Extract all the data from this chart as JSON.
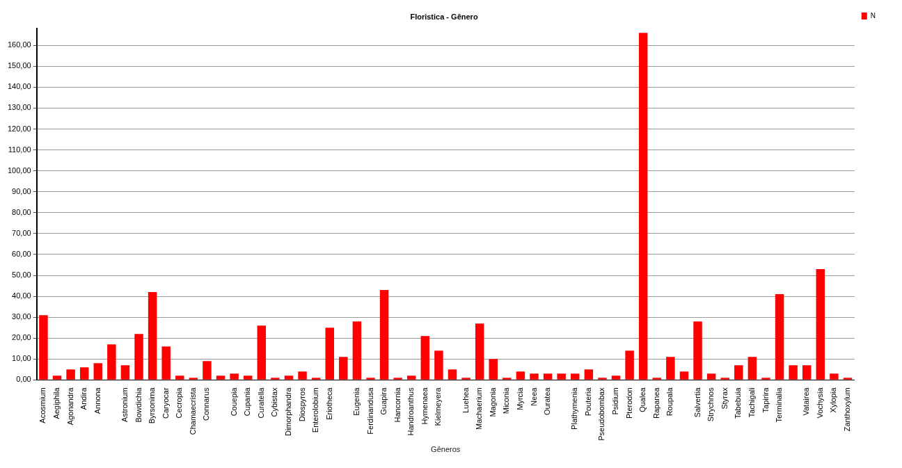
{
  "chart_data": {
    "type": "bar",
    "title": "Floristica - Gênero",
    "xlabel": "Gêneros",
    "categories": [
      "Acosmium",
      "Aegiphila",
      "Agonandra",
      "Andira",
      "Annona",
      null,
      "Astronium",
      "Bowdichia",
      "Byrsonima",
      "Caryocar",
      "Cecropia",
      "Chamaecrista",
      "Connarus",
      null,
      "Couepia",
      "Cupania",
      "Curatella",
      "Cybistax",
      "Dimorphandra",
      "Diospyros",
      "Enterolobium",
      "Eriotheca",
      null,
      "Eugenia",
      "Ferdinandusa",
      "Guapira",
      "Hancornia",
      "Handroanthus",
      "Hymenaea",
      "Kielmeyera",
      null,
      "Luehea",
      "Machaerium",
      "Magonia",
      "Miconia",
      "Myrcia",
      "Neea",
      "Ouratea",
      null,
      "Plathymenia",
      "Pouteria",
      "Pseudobombax",
      "Psidium",
      "Pterodon",
      "Qualea",
      "Rapanea",
      "Roupala",
      null,
      "Salvertia",
      "Strychnos",
      "Styrax",
      "Tabebuia",
      "Tachigali",
      "Tapirira",
      "Terminalia",
      null,
      "Vatairea",
      "Vochysia",
      "Xylopia",
      "Zanthoxylum"
    ],
    "series": [
      {
        "name": "N",
        "color": "#ff0000",
        "values": [
          31,
          2,
          5,
          6,
          8,
          17,
          7,
          22,
          42,
          16,
          2,
          1,
          9,
          2,
          3,
          2,
          26,
          1,
          2,
          4,
          1,
          25,
          11,
          28,
          1,
          43,
          1,
          2,
          21,
          14,
          5,
          1,
          27,
          10,
          1,
          4,
          3,
          3,
          3,
          3,
          5,
          1,
          2,
          14,
          166,
          1,
          11,
          4,
          28,
          3,
          1,
          7,
          11,
          1,
          41,
          7,
          7,
          53,
          3,
          1
        ]
      }
    ],
    "ylim": [
      0,
      168
    ],
    "yticks": [
      {
        "value": 0,
        "label": "0,00"
      },
      {
        "value": 10,
        "label": "10,00"
      },
      {
        "value": 20,
        "label": "20,00"
      },
      {
        "value": 30,
        "label": "30,00"
      },
      {
        "value": 40,
        "label": "40,00"
      },
      {
        "value": 50,
        "label": "50,00"
      },
      {
        "value": 60,
        "label": "60,00"
      },
      {
        "value": 70,
        "label": "70,00"
      },
      {
        "value": 80,
        "label": "80,00"
      },
      {
        "value": 90,
        "label": "90,00"
      },
      {
        "value": 100,
        "label": "100,00"
      },
      {
        "value": 110,
        "label": "110,00"
      },
      {
        "value": 120,
        "label": "120,00"
      },
      {
        "value": 130,
        "label": "130,00"
      },
      {
        "value": 140,
        "label": "140,00"
      },
      {
        "value": 150,
        "label": "150,00"
      },
      {
        "value": 160,
        "label": "160,00"
      }
    ],
    "grid": "y",
    "legend": "top right"
  }
}
